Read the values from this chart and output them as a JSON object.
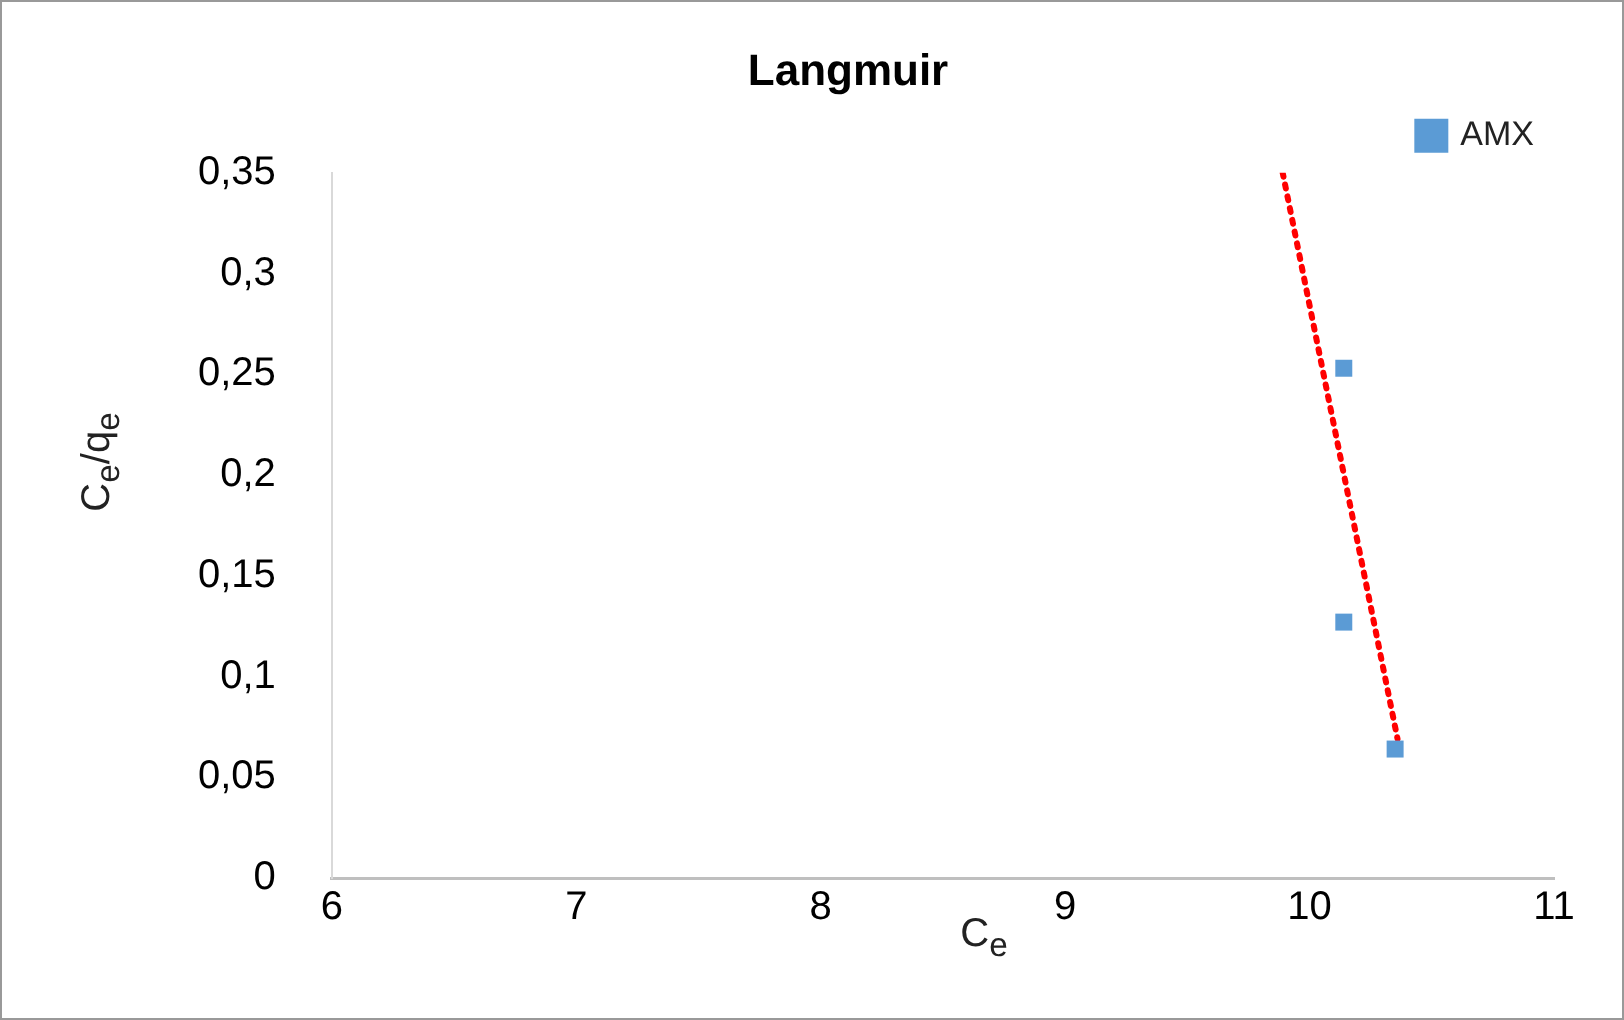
{
  "chart_data": {
    "type": "scatter",
    "title": "Langmuir",
    "xlabel": "C$_{e}$",
    "ylabel": "C$_{e}$/q$_{e}$",
    "series": [
      {
        "name": "AMX",
        "type": "scatter",
        "color": "#5b9bd5",
        "marker": "square",
        "x": [
          10.14,
          10.14,
          10.35
        ],
        "values": [
          0.253,
          0.127,
          0.064
        ]
      },
      {
        "type": "line",
        "color": "#ff0000",
        "marker": "none",
        "line_style": "dotted",
        "x": [
          9.89,
          10.36
        ],
        "values": [
          0.35,
          0.069
        ]
      }
    ],
    "xlim": [
      6,
      11
    ],
    "xticks": [
      6,
      7,
      8,
      9,
      10,
      11
    ],
    "ylim": [
      0,
      0.35
    ],
    "yticks": [
      0,
      {
        "value": 0.05,
        "label": "0,05"
      },
      {
        "value": 0.1,
        "label": "0,1"
      },
      {
        "value": 0.15,
        "label": "0,15"
      },
      {
        "value": 0.2,
        "label": "0,2"
      },
      {
        "value": 0.25,
        "label": "0,25"
      },
      {
        "value": 0.3,
        "label": "0,3"
      },
      {
        "value": 0.35,
        "label": "0,35"
      }
    ],
    "legend": "top right",
    "grid": false
  }
}
